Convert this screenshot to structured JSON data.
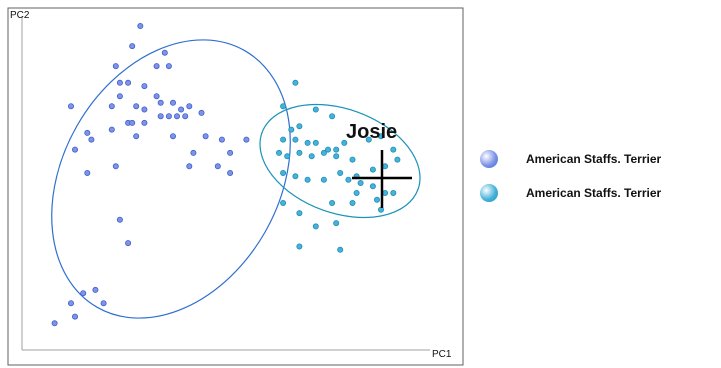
{
  "chart_data": {
    "type": "scatter",
    "title": "",
    "xlabel": "PC1",
    "ylabel": "PC2",
    "xlim": [
      0,
      100
    ],
    "ylim": [
      0,
      100
    ],
    "grid": false,
    "legend_position": "right",
    "annotation": {
      "text": "Josie",
      "x": 88,
      "y": 56
    },
    "series": [
      {
        "name": "American Staffs. Terrier",
        "color": "#7f93e6",
        "ellipse_color": "#2f6fd0",
        "points": [
          [
            29,
            97
          ],
          [
            27,
            91
          ],
          [
            35,
            89
          ],
          [
            23,
            85
          ],
          [
            33,
            85
          ],
          [
            36,
            85
          ],
          [
            24,
            80
          ],
          [
            26,
            80
          ],
          [
            30,
            79
          ],
          [
            24,
            76
          ],
          [
            33,
            76
          ],
          [
            34,
            74
          ],
          [
            37,
            74
          ],
          [
            12,
            73
          ],
          [
            22,
            73
          ],
          [
            28,
            73
          ],
          [
            30,
            72
          ],
          [
            39,
            72
          ],
          [
            41,
            73
          ],
          [
            44,
            71
          ],
          [
            34,
            70
          ],
          [
            36,
            70
          ],
          [
            38,
            70
          ],
          [
            40,
            70
          ],
          [
            26,
            68
          ],
          [
            27,
            68
          ],
          [
            30,
            68
          ],
          [
            22,
            66
          ],
          [
            16,
            65
          ],
          [
            17,
            63
          ],
          [
            28,
            64
          ],
          [
            37,
            64
          ],
          [
            45,
            64
          ],
          [
            13,
            60
          ],
          [
            49,
            63
          ],
          [
            55,
            63
          ],
          [
            42,
            59
          ],
          [
            51,
            59
          ],
          [
            23,
            55
          ],
          [
            41,
            55
          ],
          [
            48,
            55
          ],
          [
            51,
            53
          ],
          [
            16,
            53
          ],
          [
            24,
            39
          ],
          [
            26,
            32
          ],
          [
            15,
            17
          ],
          [
            18,
            18
          ],
          [
            12,
            14
          ],
          [
            20,
            14
          ],
          [
            13,
            10
          ],
          [
            8,
            8
          ]
        ]
      },
      {
        "name": "American Staffs. Terrier",
        "color": "#46b2da",
        "ellipse_color": "#1a93b8",
        "points": [
          [
            67,
            80
          ],
          [
            64,
            73
          ],
          [
            72,
            72
          ],
          [
            76,
            70
          ],
          [
            66,
            66
          ],
          [
            68,
            67
          ],
          [
            64,
            63
          ],
          [
            67,
            63
          ],
          [
            70,
            62
          ],
          [
            72,
            62
          ],
          [
            75,
            60
          ],
          [
            77,
            60
          ],
          [
            79,
            62
          ],
          [
            85,
            63
          ],
          [
            88,
            64
          ],
          [
            91,
            60
          ],
          [
            63,
            59
          ],
          [
            65,
            58
          ],
          [
            68,
            59
          ],
          [
            71,
            58
          ],
          [
            74,
            59
          ],
          [
            77,
            58
          ],
          [
            81,
            57
          ],
          [
            86,
            54
          ],
          [
            89,
            55
          ],
          [
            92,
            57
          ],
          [
            64,
            53
          ],
          [
            67,
            52
          ],
          [
            70,
            51
          ],
          [
            74,
            51
          ],
          [
            78,
            53
          ],
          [
            80,
            51
          ],
          [
            82,
            52
          ],
          [
            83,
            50
          ],
          [
            86,
            49
          ],
          [
            91,
            47
          ],
          [
            64,
            44
          ],
          [
            68,
            41
          ],
          [
            76,
            44
          ],
          [
            81,
            44
          ],
          [
            87,
            45
          ],
          [
            89,
            47
          ],
          [
            77,
            38
          ],
          [
            68,
            31
          ],
          [
            78,
            30
          ],
          [
            72,
            37
          ],
          [
            88,
            42
          ],
          [
            82,
            47
          ]
        ]
      }
    ]
  }
}
